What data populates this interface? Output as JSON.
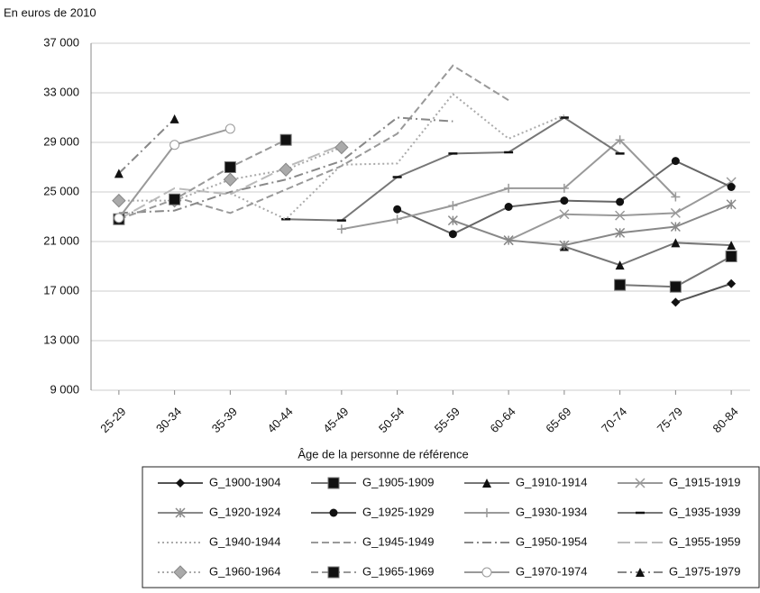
{
  "chart_data": {
    "type": "line",
    "y_unit_label": "En euros de 2010",
    "x_label": "Âge de la personne de référence",
    "categories": [
      "25-29",
      "30-34",
      "35-39",
      "40-44",
      "45-49",
      "50-54",
      "55-59",
      "60-64",
      "65-69",
      "70-74",
      "75-79",
      "80-84"
    ],
    "ylim": [
      9000,
      37000
    ],
    "yticks": [
      {
        "value": 9000,
        "label": "9 000"
      },
      {
        "value": 13000,
        "label": "13 000"
      },
      {
        "value": 17000,
        "label": "17 000"
      },
      {
        "value": 21000,
        "label": "21 000"
      },
      {
        "value": 25000,
        "label": "25 000"
      },
      {
        "value": 29000,
        "label": "29 000"
      },
      {
        "value": 33000,
        "label": "33 000"
      },
      {
        "value": 37000,
        "label": "37 000"
      }
    ],
    "series": [
      {
        "name": "G_1900-1904",
        "color": "#555555",
        "style": "solid",
        "marker": "diamond",
        "values": [
          null,
          null,
          null,
          null,
          null,
          null,
          null,
          null,
          null,
          null,
          16100,
          17600
        ]
      },
      {
        "name": "G_1905-1909",
        "color": "#777777",
        "style": "solid",
        "marker": "square",
        "values": [
          null,
          null,
          null,
          null,
          null,
          null,
          null,
          null,
          null,
          17500,
          17350,
          19800
        ]
      },
      {
        "name": "G_1910-1914",
        "color": "#777777",
        "style": "solid",
        "marker": "triangle",
        "values": [
          null,
          null,
          null,
          null,
          null,
          null,
          null,
          null,
          20600,
          19100,
          20900,
          20700
        ]
      },
      {
        "name": "G_1915-1919",
        "color": "#999999",
        "style": "solid",
        "marker": "x",
        "values": [
          null,
          null,
          null,
          null,
          null,
          null,
          null,
          21100,
          23200,
          23100,
          23300,
          25800
        ]
      },
      {
        "name": "G_1920-1924",
        "color": "#888888",
        "style": "solid",
        "marker": "star",
        "values": [
          null,
          null,
          null,
          null,
          null,
          null,
          22700,
          21100,
          20700,
          21700,
          22200,
          24000
        ]
      },
      {
        "name": "G_1925-1929",
        "color": "#666666",
        "style": "solid",
        "marker": "circle",
        "values": [
          null,
          null,
          null,
          null,
          null,
          23600,
          21600,
          23800,
          24300,
          24200,
          27500,
          25400
        ]
      },
      {
        "name": "G_1930-1934",
        "color": "#999999",
        "style": "solid",
        "marker": "plus",
        "values": [
          null,
          null,
          null,
          null,
          22000,
          22800,
          23900,
          25300,
          25300,
          29200,
          24600,
          null
        ]
      },
      {
        "name": "G_1935-1939",
        "color": "#777777",
        "style": "solid",
        "marker": "dash",
        "values": [
          null,
          null,
          null,
          22800,
          22700,
          26200,
          28100,
          28200,
          31000,
          28100,
          null,
          null
        ]
      },
      {
        "name": "G_1940-1944",
        "color": "#aaaaaa",
        "style": "dotted",
        "marker": "none",
        "values": [
          null,
          null,
          24900,
          22800,
          27200,
          27300,
          32900,
          29300,
          31200,
          null,
          null,
          null
        ]
      },
      {
        "name": "G_1945-1949",
        "color": "#999999",
        "style": "dashed",
        "marker": "none",
        "values": [
          null,
          24600,
          23300,
          25200,
          27100,
          29700,
          35200,
          32400,
          null,
          null,
          null,
          null
        ]
      },
      {
        "name": "G_1950-1954",
        "color": "#888888",
        "style": "dashdot",
        "marker": "none",
        "values": [
          23300,
          23500,
          25000,
          26000,
          27500,
          31000,
          30700,
          null,
          null,
          null,
          null,
          null
        ]
      },
      {
        "name": "G_1955-1959",
        "color": "#bbbbbb",
        "style": "longdash",
        "marker": "none",
        "values": [
          22800,
          25300,
          24800,
          27000,
          28800,
          null,
          null,
          null,
          null,
          null,
          null,
          null
        ]
      },
      {
        "name": "G_1960-1964",
        "color": "#aaaaaa",
        "style": "dotted",
        "marker": "diamond-gray",
        "values": [
          24300,
          24300,
          26000,
          26800,
          28600,
          null,
          null,
          null,
          null,
          null,
          null,
          null
        ]
      },
      {
        "name": "G_1965-1969",
        "color": "#999999",
        "style": "dashed",
        "marker": "square",
        "values": [
          22800,
          24400,
          27000,
          29200,
          null,
          null,
          null,
          null,
          null,
          null,
          null,
          null
        ]
      },
      {
        "name": "G_1970-1974",
        "color": "#999999",
        "style": "solid",
        "marker": "circle-open",
        "values": [
          22900,
          28800,
          30100,
          null,
          null,
          null,
          null,
          null,
          null,
          null,
          null,
          null
        ]
      },
      {
        "name": "G_1975-1979",
        "color": "#888888",
        "style": "dashdot",
        "marker": "triangle",
        "values": [
          26500,
          30900,
          null,
          null,
          null,
          null,
          null,
          null,
          null,
          null,
          null,
          null
        ]
      }
    ]
  }
}
